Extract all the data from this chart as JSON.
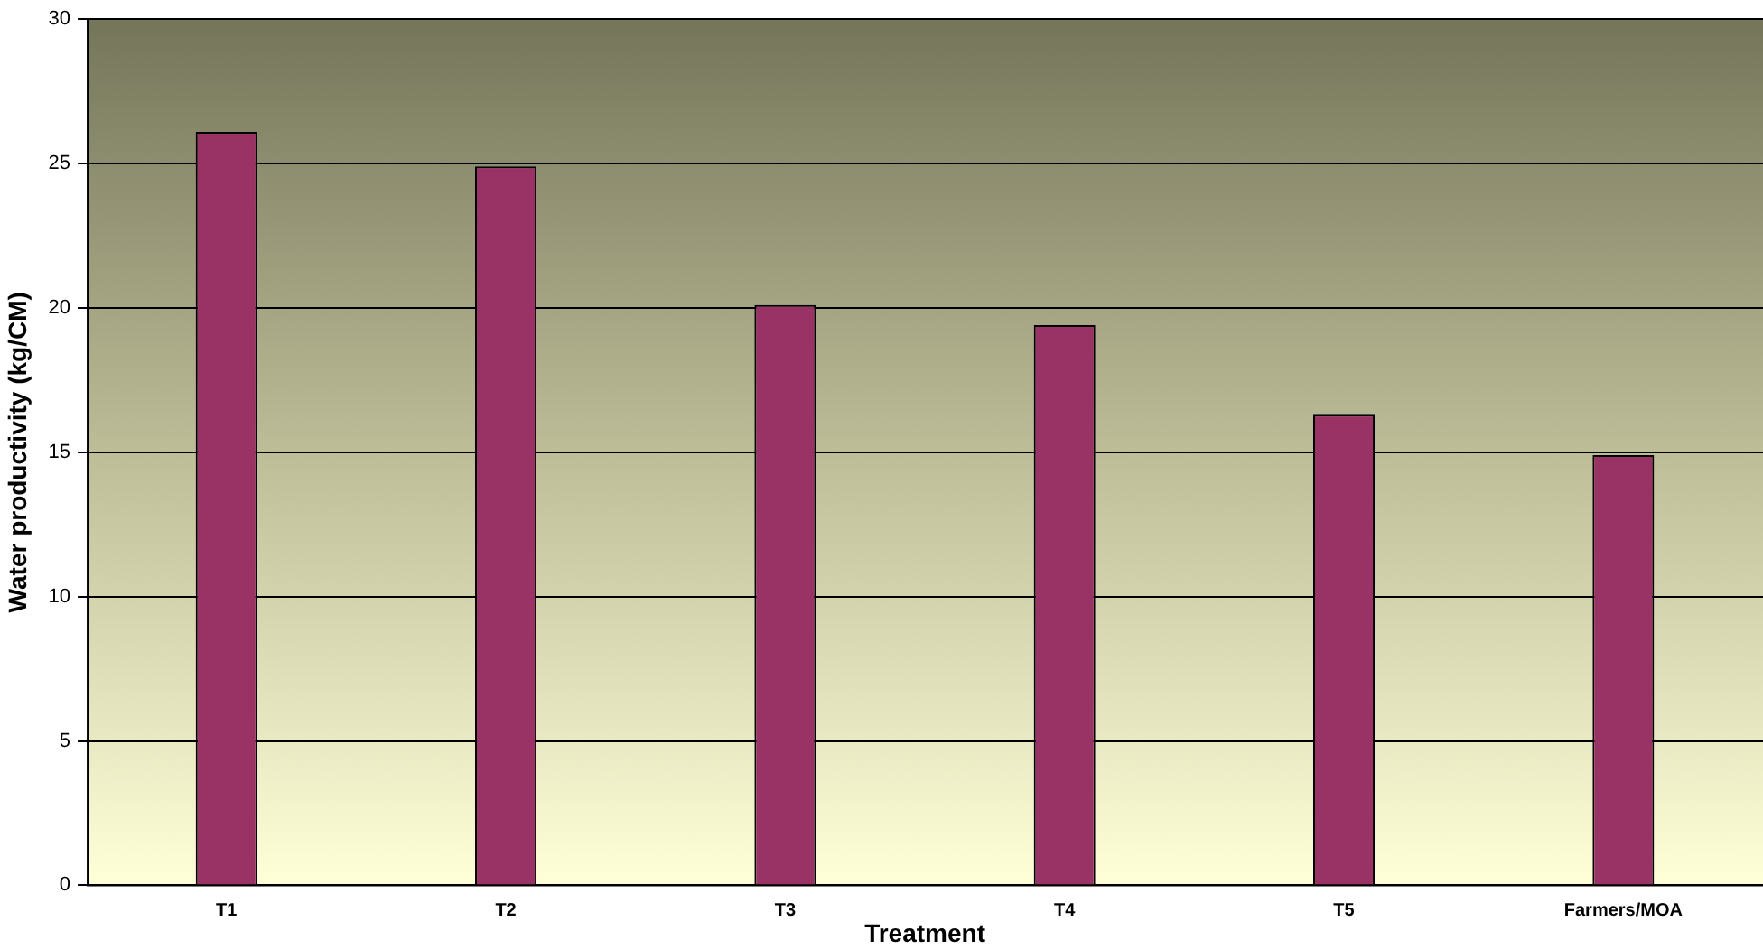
{
  "chart_data": {
    "type": "bar",
    "xlabel": "Treatment",
    "ylabel": "Water productivity (kg/CM)",
    "categories": [
      "T1",
      "T2",
      "T3",
      "T4",
      "T5",
      "Farmers/MOA"
    ],
    "values": [
      26.1,
      24.9,
      20.1,
      19.4,
      16.3,
      14.9
    ],
    "color": "#993366",
    "ylim": [
      0,
      30
    ],
    "yticks": [
      0,
      5,
      10,
      15,
      20,
      25,
      30
    ],
    "grid": "y",
    "legend": false
  }
}
